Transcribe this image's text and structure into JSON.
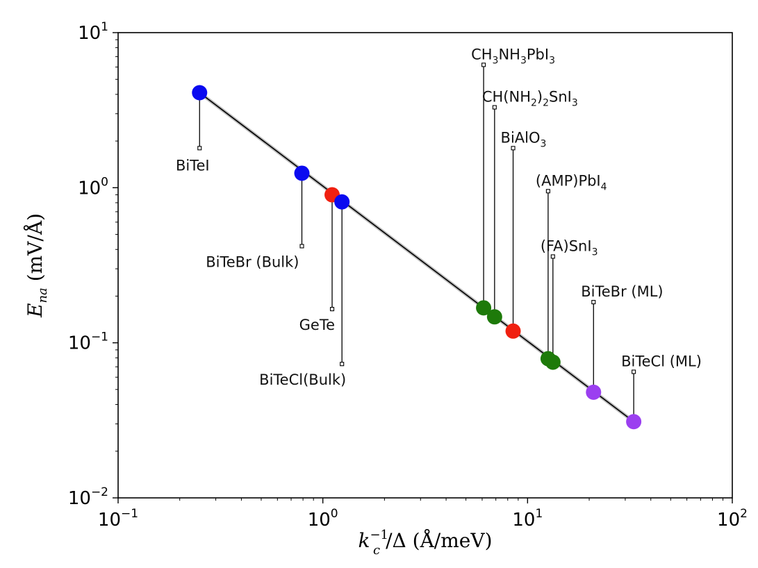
{
  "chart_data": {
    "type": "scatter",
    "title": "",
    "scale": "log-log",
    "xlim": [
      0.1,
      100
    ],
    "ylim": [
      0.01,
      10
    ],
    "xlabel": {
      "base": "k",
      "sub": "c",
      "sup": "−1",
      "rest": "/Δ (Å/meV)"
    },
    "ylabel": {
      "base": "E",
      "sub": "na",
      "rest": " (mV/Å)"
    },
    "xticks": [
      {
        "value": 0.1,
        "base": "10",
        "exp": "−1"
      },
      {
        "value": 1,
        "base": "10",
        "exp": "0"
      },
      {
        "value": 10,
        "base": "10",
        "exp": "1"
      },
      {
        "value": 100,
        "base": "10",
        "exp": "2"
      }
    ],
    "yticks": [
      {
        "value": 0.01,
        "base": "10",
        "exp": "−2"
      },
      {
        "value": 0.1,
        "base": "10",
        "exp": "−1"
      },
      {
        "value": 1,
        "base": "10",
        "exp": "0"
      },
      {
        "value": 10,
        "base": "10",
        "exp": "1"
      }
    ],
    "fit_line": {
      "x": [
        0.25,
        33
      ],
      "y": [
        4.1,
        0.031
      ],
      "color": "#000000"
    },
    "points": [
      {
        "name": "BiTeI",
        "x": 0.25,
        "y": 4.1,
        "color": "#0a0af0",
        "label_parts": [
          {
            "t": "BiTeI"
          }
        ],
        "anchor_y": 1.8,
        "label_side": "below"
      },
      {
        "name": "BiTeBr (Bulk)",
        "x": 0.79,
        "y": 1.24,
        "color": "#0a0af0",
        "label_parts": [
          {
            "t": "BiTeBr (Bulk)"
          }
        ],
        "anchor_y": 0.42,
        "label_side": "below"
      },
      {
        "name": "GeTe",
        "x": 1.11,
        "y": 0.9,
        "color": "#f02010",
        "label_parts": [
          {
            "t": "GeTe"
          }
        ],
        "anchor_y": 0.165,
        "label_side": "below"
      },
      {
        "name": "BiTeCl(Bulk)",
        "x": 1.24,
        "y": 0.81,
        "color": "#0a0af0",
        "label_parts": [
          {
            "t": "BiTeCl(Bulk)"
          }
        ],
        "anchor_y": 0.073,
        "label_side": "below"
      },
      {
        "name": "CH3NH3PbI3",
        "x": 6.1,
        "y": 0.168,
        "color": "#1e7a0a",
        "label_parts": [
          {
            "t": "CH"
          },
          {
            "t": "3",
            "sub": true
          },
          {
            "t": "NH"
          },
          {
            "t": "3",
            "sub": true
          },
          {
            "t": "PbI"
          },
          {
            "t": "3",
            "sub": true
          }
        ],
        "anchor_y": 6.2,
        "label_side": "above"
      },
      {
        "name": "CH(NH2)2SnI3",
        "x": 6.9,
        "y": 0.147,
        "color": "#1e7a0a",
        "label_parts": [
          {
            "t": "CH(NH"
          },
          {
            "t": "2",
            "sub": true
          },
          {
            "t": ")"
          },
          {
            "t": "2",
            "sub": true
          },
          {
            "t": "SnI"
          },
          {
            "t": "3",
            "sub": true
          }
        ],
        "anchor_y": 3.3,
        "label_side": "above"
      },
      {
        "name": "BiAlO3",
        "x": 8.5,
        "y": 0.119,
        "color": "#f02010",
        "label_parts": [
          {
            "t": "BiAlO"
          },
          {
            "t": "3",
            "sub": true
          }
        ],
        "anchor_y": 1.8,
        "label_side": "above"
      },
      {
        "name": "(AMP)PbI4",
        "x": 12.6,
        "y": 0.079,
        "color": "#1e7a0a",
        "label_parts": [
          {
            "t": "(AMP)PbI"
          },
          {
            "t": "4",
            "sub": true
          }
        ],
        "anchor_y": 0.95,
        "label_side": "above"
      },
      {
        "name": "(FA)SnI3",
        "x": 13.3,
        "y": 0.075,
        "color": "#1e7a0a",
        "label_parts": [
          {
            "t": "(FA)SnI"
          },
          {
            "t": "3",
            "sub": true
          }
        ],
        "anchor_y": 0.36,
        "label_side": "above"
      },
      {
        "name": "BiTeBr (ML)",
        "x": 21,
        "y": 0.048,
        "color": "#9b3ff0",
        "label_parts": [
          {
            "t": "BiTeBr (ML)"
          }
        ],
        "anchor_y": 0.183,
        "label_side": "above"
      },
      {
        "name": "BiTeCl (ML)",
        "x": 33,
        "y": 0.031,
        "color": "#9b3ff0",
        "label_parts": [
          {
            "t": "BiTeCl (ML)"
          }
        ],
        "anchor_y": 0.065,
        "label_side": "above"
      }
    ]
  }
}
